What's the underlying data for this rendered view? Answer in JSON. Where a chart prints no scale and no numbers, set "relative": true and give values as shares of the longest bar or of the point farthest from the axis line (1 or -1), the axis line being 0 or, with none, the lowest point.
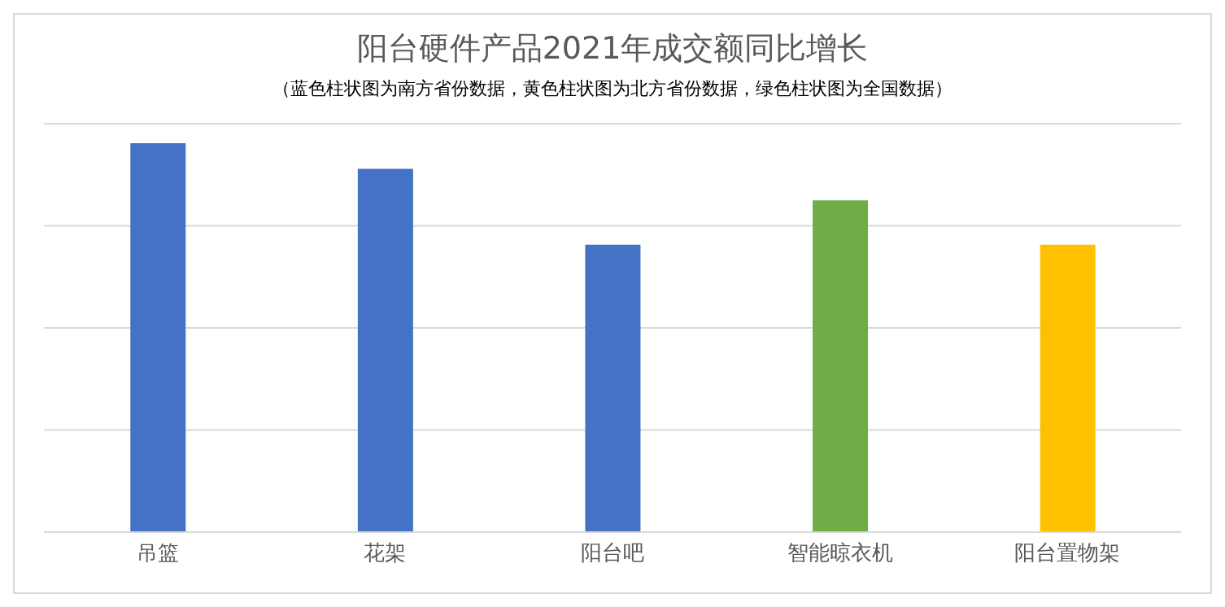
{
  "chart_data": {
    "type": "bar",
    "title": "阳台硬件产品2021年成交额同比增长",
    "subtitle": "（蓝色柱状图为南方省份数据，黄色柱状图为北方省份数据，绿色柱状图为全国数据）",
    "categories": [
      "吊篮",
      "花架",
      "阳台吧",
      "智能晾衣机",
      "阳台置物架"
    ],
    "values": [
      1,
      0.934,
      0.739,
      0.853,
      0.739
    ],
    "colors": [
      "#4472c4",
      "#4472c4",
      "#4472c4",
      "#70ad47",
      "#ffc000"
    ],
    "relative": true,
    "grid": "y"
  }
}
